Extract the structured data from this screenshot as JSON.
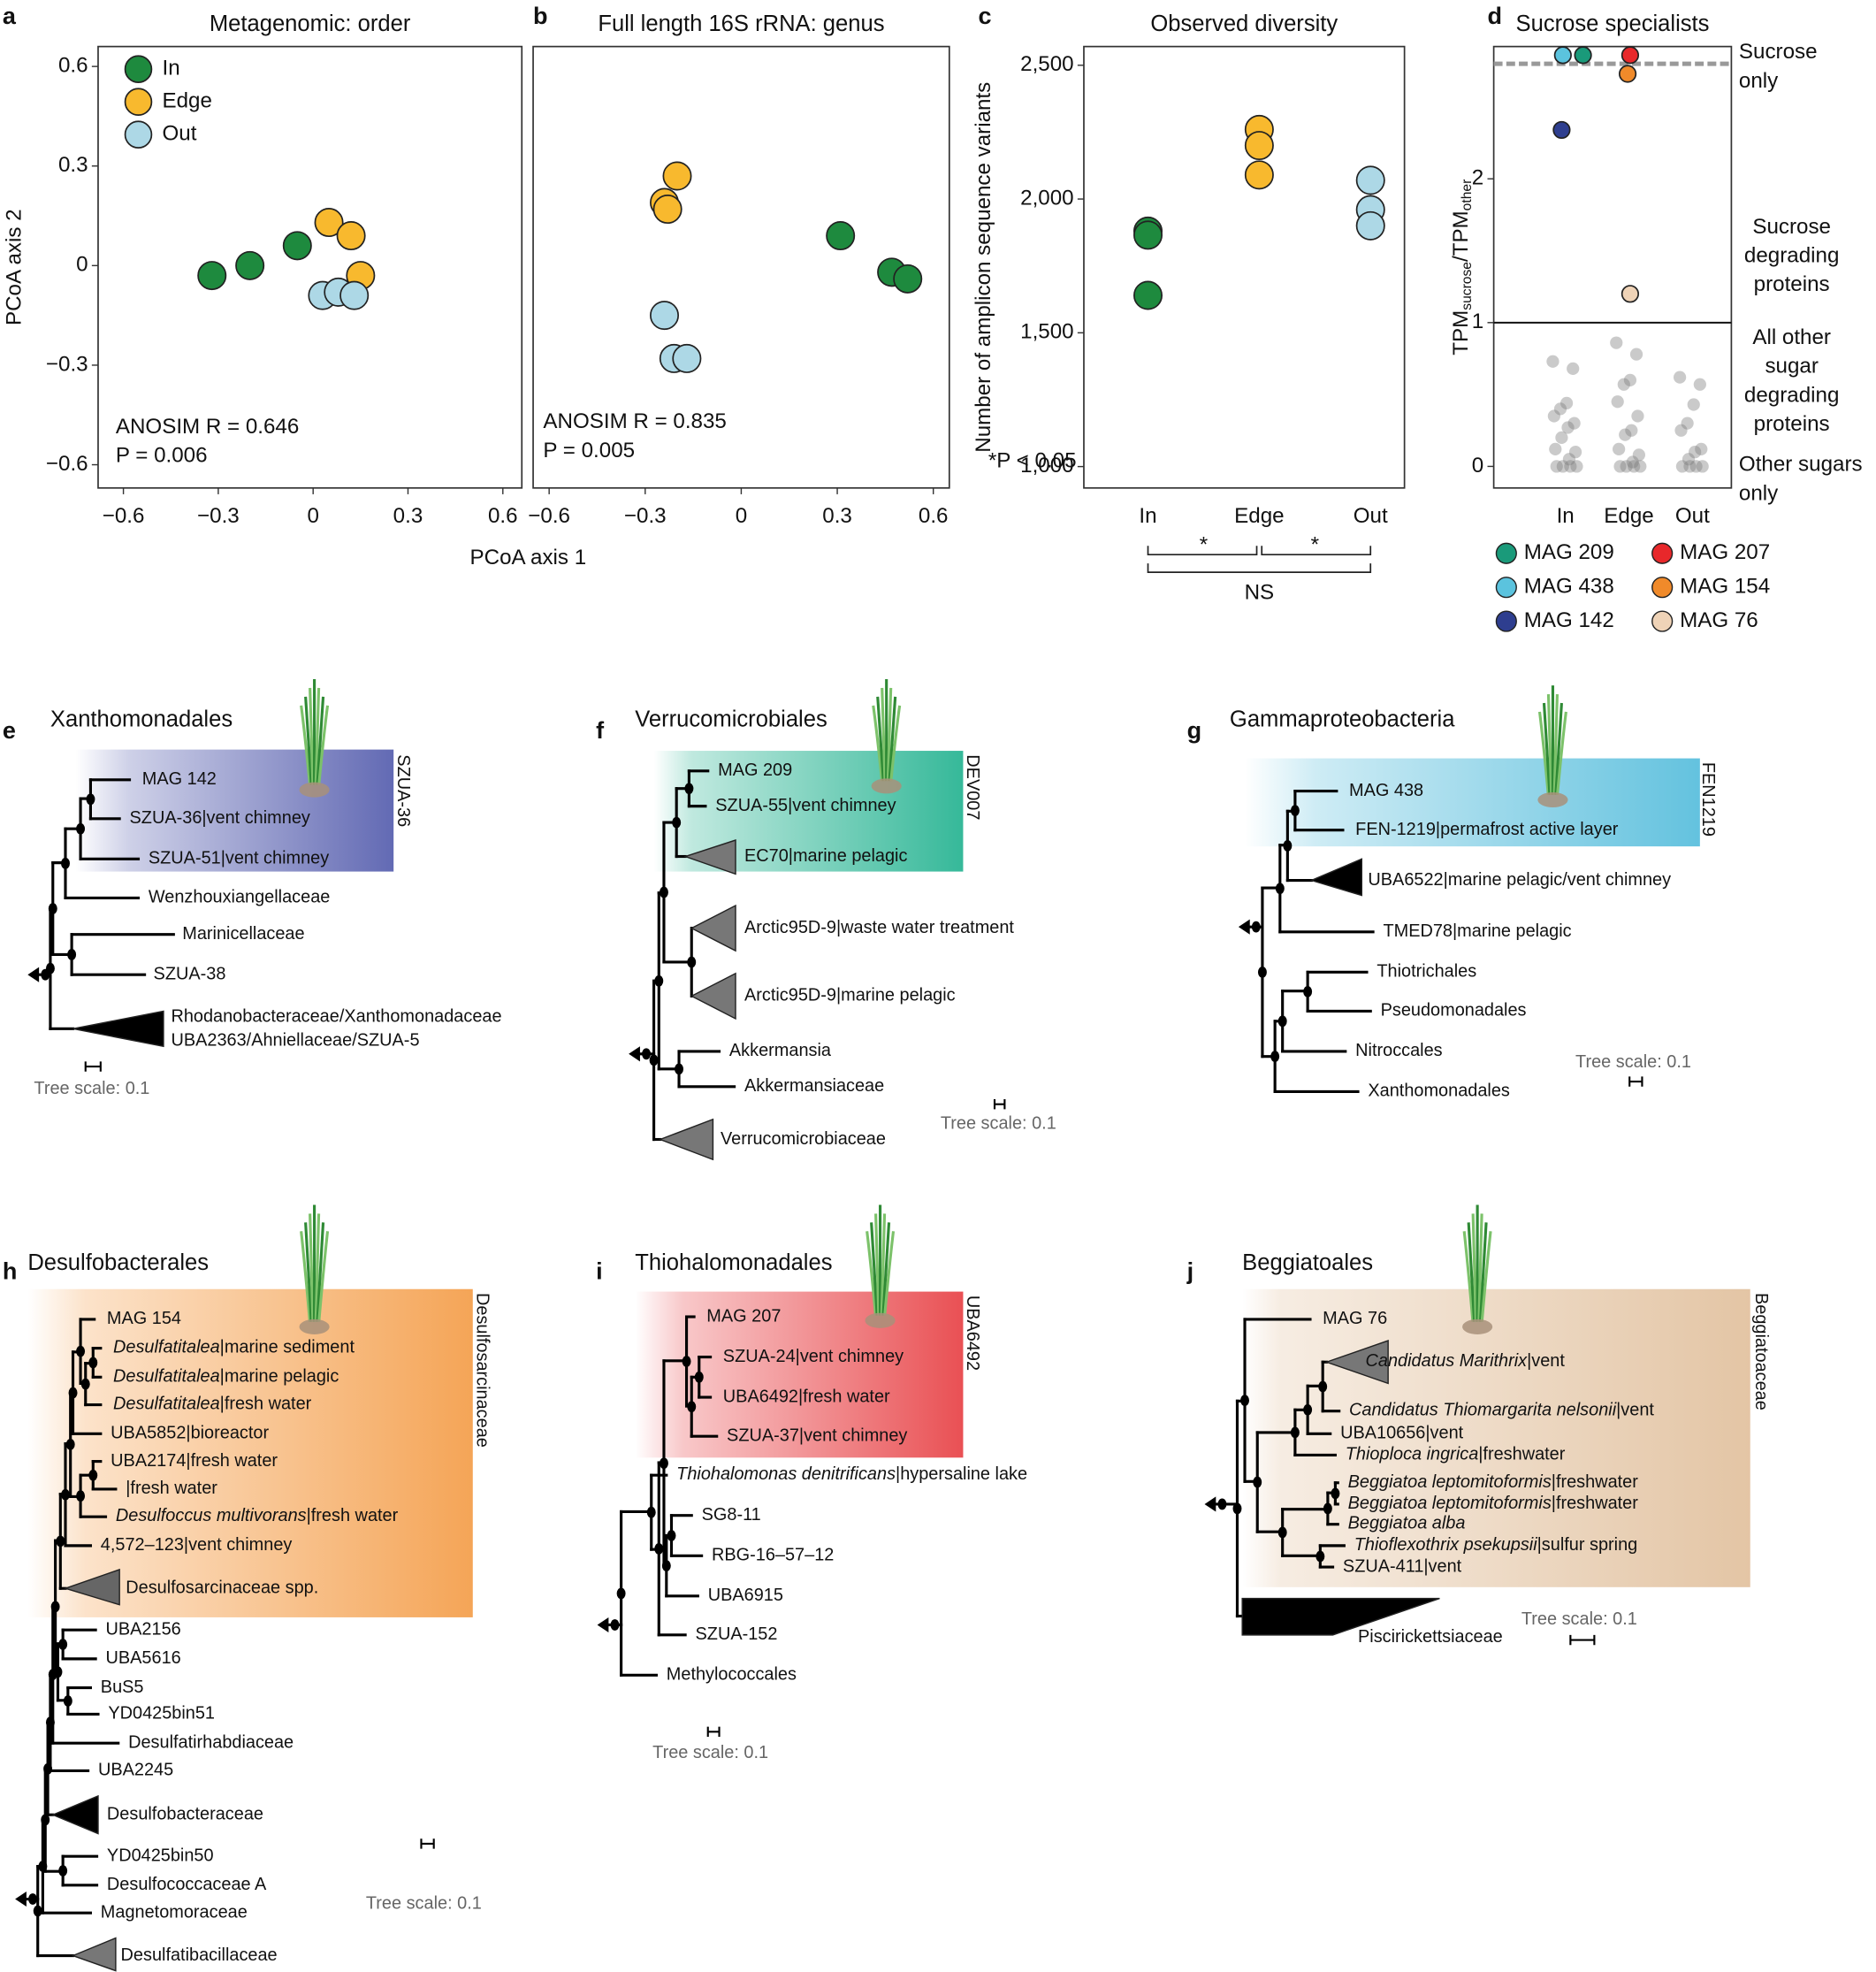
{
  "chart_data": [
    {
      "panel": "a",
      "type": "scatter",
      "title": "Metagenomic: order",
      "xlabel": "PCoA axis 1",
      "ylabel": "PCoA axis 2",
      "xlim": [
        -0.68,
        0.66
      ],
      "ylim": [
        -0.67,
        0.66
      ],
      "xticks": [
        {
          "value": -0.6,
          "label": "−0.6"
        },
        {
          "value": -0.3,
          "label": "−0.3"
        },
        0,
        0.3,
        0.6
      ],
      "yticks": [
        {
          "value": -0.6,
          "label": "−0.6"
        },
        {
          "value": -0.3,
          "label": "−0.3"
        },
        0,
        0.3,
        0.6
      ],
      "legend": "upper left",
      "series": [
        {
          "name": "In",
          "color": "#1e8a3e",
          "x": [
            -0.32,
            -0.2,
            -0.05
          ],
          "values": [
            -0.03,
            0.0,
            0.06
          ]
        },
        {
          "name": "Edge",
          "color": "#f8b92e",
          "x": [
            0.05,
            0.12,
            0.15
          ],
          "values": [
            0.13,
            0.09,
            -0.03
          ]
        },
        {
          "name": "Out",
          "color": "#add8e6",
          "x": [
            0.03,
            0.08,
            0.13
          ],
          "values": [
            -0.09,
            -0.08,
            -0.09
          ]
        }
      ],
      "annotation": [
        "ANOSIM R = 0.646",
        "P = 0.006"
      ]
    },
    {
      "panel": "b",
      "type": "scatter",
      "title": "Full length 16S rRNA: genus",
      "xlim": [
        -0.65,
        0.65
      ],
      "ylim": [
        -0.67,
        0.66
      ],
      "xticks": [
        {
          "value": -0.6,
          "label": "−0.6"
        },
        {
          "value": -0.3,
          "label": "−0.3"
        },
        0,
        0.3,
        0.6
      ],
      "series": [
        {
          "color": "#1e8a3e",
          "x": [
            0.31,
            0.47,
            0.52
          ],
          "values": [
            0.09,
            -0.02,
            -0.04
          ]
        },
        {
          "color": "#f8b92e",
          "x": [
            -0.2,
            -0.24,
            -0.23
          ],
          "values": [
            0.27,
            0.19,
            0.17
          ]
        },
        {
          "color": "#add8e6",
          "x": [
            -0.24,
            -0.21,
            -0.17
          ],
          "values": [
            -0.15,
            -0.28,
            -0.28
          ]
        }
      ],
      "annotation": [
        "ANOSIM R = 0.835",
        "P = 0.005"
      ]
    },
    {
      "panel": "c",
      "type": "strip",
      "title": "Observed diversity",
      "ylabel": "Number of amplicon sequence variants",
      "categories": [
        "In",
        "Edge",
        "Out"
      ],
      "ylim": [
        920,
        2570
      ],
      "yticks": [
        {
          "value": 1000,
          "label": "1,000"
        },
        {
          "value": 1500,
          "label": "1,500"
        },
        {
          "value": 2000,
          "label": "2,000"
        },
        {
          "value": 2500,
          "label": "2,500"
        }
      ],
      "series": [
        {
          "color": "#1e8a3e",
          "category": 0,
          "values": [
            1880,
            1865,
            1640
          ]
        },
        {
          "color": "#f8b92e",
          "category": 1,
          "values": [
            2260,
            2200,
            2090
          ]
        },
        {
          "color": "#add8e6",
          "category": 2,
          "values": [
            2070,
            1960,
            1900
          ]
        }
      ],
      "annotation": [
        "*P < 0.05"
      ],
      "brackets": [
        {
          "from": 0,
          "to": 1,
          "label": "*"
        },
        {
          "from": 1,
          "to": 2,
          "label": "*"
        },
        {
          "from": 0,
          "to": 2,
          "label": "NS"
        }
      ]
    },
    {
      "panel": "d",
      "type": "strip",
      "title": "Sucrose specialists",
      "ylabel": [
        "TPM",
        "sucrose",
        "/TPM",
        "other"
      ],
      "categories": [
        "In",
        "Edge",
        "Out"
      ],
      "ylim": [
        -0.15,
        2.92
      ],
      "yticks": [
        0,
        1,
        2
      ],
      "threshold": 1,
      "dashed_line": 2.8,
      "series": [
        {
          "name": "MAG 209",
          "color": "#1a9a7a",
          "category": 0,
          "values": [
            2.86
          ]
        },
        {
          "name": "MAG 438",
          "color": "#5bc3de",
          "category": 0,
          "values": [
            2.86
          ]
        },
        {
          "name": "MAG 142",
          "color": "#2e3e8f",
          "category": 0,
          "values": [
            2.34
          ]
        },
        {
          "name": "MAG 207",
          "color": "#e8282b",
          "category": 1,
          "values": [
            2.86
          ]
        },
        {
          "name": "MAG 154",
          "color": "#f08a2a",
          "category": 1,
          "values": [
            2.73
          ]
        },
        {
          "name": "MAG 76",
          "color": "#efd3b7",
          "category": 1,
          "values": [
            1.2
          ]
        }
      ],
      "background": {
        "color": "#7a7a7a",
        "values": [
          [
            0.73,
            0.68,
            0.44,
            0.4,
            0.35,
            0.3,
            0.27,
            0.2,
            0.12,
            0.1,
            0.05,
            0,
            0,
            0,
            0
          ],
          [
            0.86,
            0.78,
            0.6,
            0.57,
            0.45,
            0.35,
            0.25,
            0.22,
            0.12,
            0.08,
            0.03,
            0,
            0,
            0,
            0
          ],
          [
            0.62,
            0.57,
            0.43,
            0.3,
            0.25,
            0.12,
            0.1,
            0.05,
            0,
            0,
            0,
            0
          ]
        ]
      },
      "region_labels": [
        [
          "Sucrose",
          "only"
        ],
        [
          "Sucrose",
          "degrading",
          "proteins"
        ],
        [
          "All other",
          "sugar",
          "degrading",
          "proteins"
        ],
        [
          "Other sugars",
          "only"
        ]
      ]
    }
  ],
  "trees": [
    {
      "letter": "e",
      "title": "Xanthomonadales",
      "clade_label": "SZUA-36",
      "scale_label": "Tree scale: 0.1",
      "leaves": [
        "MAG 142",
        "SZUA-36|vent chimney",
        "SZUA-51|vent chimney",
        "Wenzhouxiangellaceae",
        "Marinicellaceae",
        "SZUA-38",
        [
          "Rhodanobacteraceae/Xanthomonadaceae",
          "UBA2363/Ahniellaceae/SZUA-5"
        ]
      ]
    },
    {
      "letter": "f",
      "title": "Verrucomicrobiales",
      "clade_label": "DEV007",
      "scale_label": "Tree scale: 0.1",
      "leaves": [
        "MAG 209",
        "SZUA-55|vent chimney",
        "EC70|marine pelagic",
        "Arctic95D-9|waste water treatment",
        "Arctic95D-9|marine pelagic",
        "Akkermansia",
        "Akkermansiaceae",
        "Verrucomicrobiaceae"
      ]
    },
    {
      "letter": "g",
      "title": "Gammaproteobacteria",
      "clade_label": "FEN1219",
      "scale_label": "Tree scale: 0.1",
      "leaves": [
        "MAG 438",
        "FEN-1219|permafrost active layer",
        "UBA6522|marine pelagic/vent chimney",
        "TMED78|marine pelagic",
        "Thiotrichales",
        "Pseudomonadales",
        "Nitroccales",
        "Xanthomonadales"
      ]
    },
    {
      "letter": "h",
      "title": "Desulfobacterales",
      "clade_label": "Desulfosarcinaceae",
      "scale_label": "Tree scale: 0.1",
      "leaves": [
        "MAG 154",
        "Desulfatitalea|marine sediment",
        "Desulfatitalea|marine pelagic",
        "Desulfatitalea|fresh water",
        "UBA5852|bioreactor",
        "UBA2174|fresh water",
        "|fresh water",
        "Desulfoccus multivorans|fresh water",
        "4,572–123|vent chimney",
        "Desulfosarcinaceae spp.",
        "UBA2156",
        "UBA5616",
        "BuS5",
        "YD0425bin51",
        "Desulfatirhabdiaceae",
        "UBA2245",
        "Desulfobacteraceae",
        "YD0425bin50",
        "Desulfococcaceae A",
        "Magnetomoraceae",
        "Desulfatibacillaceae"
      ]
    },
    {
      "letter": "i",
      "title": "Thiohalomonadales",
      "clade_label": "UBA6492",
      "scale_label": "Tree scale: 0.1",
      "leaves": [
        "MAG 207",
        "SZUA-24|vent chimney",
        "UBA6492|fresh water",
        "SZUA-37|vent chimney",
        "Thiohalomonas denitrificans|hypersaline lake",
        "SG8-11",
        "RBG-16–57–12",
        "UBA6915",
        "SZUA-152",
        "Methylococcales"
      ]
    },
    {
      "letter": "j",
      "title": "Beggiatoales",
      "clade_label": "Beggiatoaceae",
      "scale_label": "Tree scale: 0.1",
      "leaves": [
        "MAG 76",
        "Candidatus Marithrix|vent",
        "Candidatus Thiomargarita nelsonii|vent",
        "UBA10656|vent",
        "Thioploca ingrica|freshwater",
        "Beggiatoa leptomitoformis|freshwater",
        "Beggiatoa leptomitoformis|freshwater",
        "Beggiatoa alba",
        "Thioflexothrix psekupsii|sulfur spring",
        "SZUA-411|vent",
        "Piscirickettsiaceae"
      ]
    }
  ]
}
